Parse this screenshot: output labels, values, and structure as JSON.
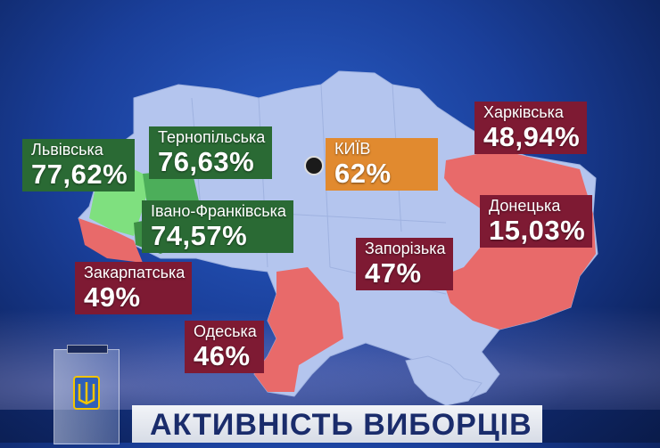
{
  "title": "АКТИВНІСТЬ ВИБОРЦІВ",
  "colors": {
    "west_green": "#2a6a34",
    "low_turnout_red": "#7e1a33",
    "kyiv_orange": "#e18a2f",
    "map_base": "#b4c5ee",
    "highlight_green": "#7fe07f",
    "highlight_red": "#e86a6a"
  },
  "regions": [
    {
      "name": "Львівська",
      "turnout": "77,62%"
    },
    {
      "name": "Тернопільська",
      "turnout": "76,63%"
    },
    {
      "name": "Івано-Франківська",
      "turnout": "74,57%"
    },
    {
      "name": "Закарпатська",
      "turnout": "49%"
    },
    {
      "name": "Одеська",
      "turnout": "46%"
    },
    {
      "name": "КИЇВ",
      "turnout": "62%"
    },
    {
      "name": "Запорізька",
      "turnout": "47%"
    },
    {
      "name": "Харківська",
      "turnout": "48,94%"
    },
    {
      "name": "Донецька",
      "turnout": "15,03%"
    }
  ],
  "icons": {
    "ballot_box": "ballot-box-icon",
    "kyiv_marker": "city-marker-icon",
    "trident": "trident-icon"
  }
}
